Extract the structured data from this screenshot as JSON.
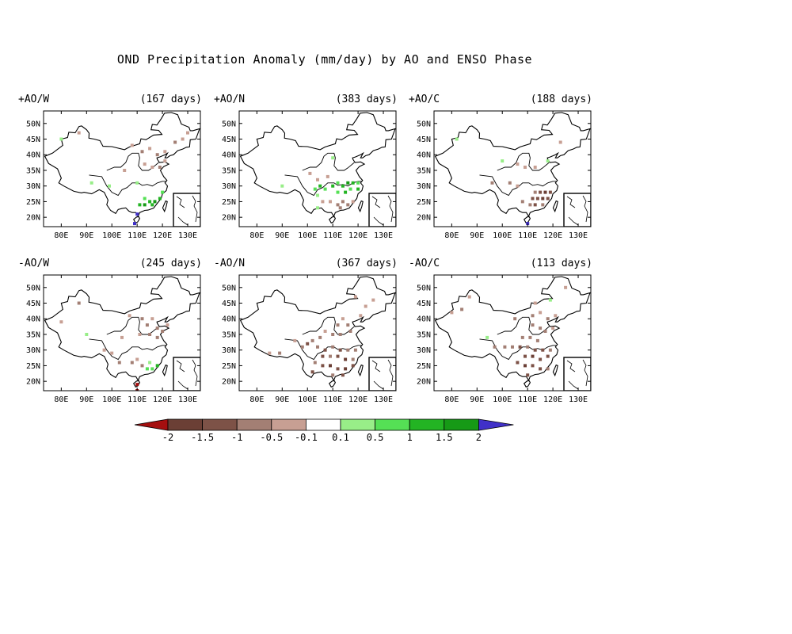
{
  "title": "OND Precipitation Anomaly (mm/day) by AO and ENSO Phase",
  "axes": {
    "x_ticks": [
      "80E",
      "90E",
      "100E",
      "110E",
      "120E",
      "130E"
    ],
    "y_ticks": [
      "50N",
      "45N",
      "40N",
      "35N",
      "30N",
      "25N",
      "20N"
    ]
  },
  "colorbar": {
    "labels": [
      "-2",
      "-1.5",
      "-1",
      "-0.5",
      "-0.1",
      "0.1",
      "0.5",
      "1",
      "1.5",
      "2"
    ],
    "colors": [
      "#a50f0f",
      "#6b3f35",
      "#7d5247",
      "#a37f74",
      "#c79f93",
      "#ffffff",
      "#98ee88",
      "#55e055",
      "#23b423",
      "#169a16",
      "#4030c8"
    ]
  },
  "chart_data": [
    {
      "type": "scatter",
      "panel": "top-left",
      "label": "+AO/W",
      "days": "(167 days)",
      "xlim": [
        73,
        135
      ],
      "ylim": [
        17,
        54
      ],
      "points": [
        [
          80,
          45,
          "#98ee88"
        ],
        [
          87,
          47,
          "#c79f93"
        ],
        [
          108,
          43,
          "#c79f93"
        ],
        [
          112,
          41,
          "#a37f74"
        ],
        [
          115,
          42,
          "#c79f93"
        ],
        [
          118,
          40,
          "#a37f74"
        ],
        [
          121,
          41,
          "#c79f93"
        ],
        [
          125,
          44,
          "#a37f74"
        ],
        [
          128,
          45,
          "#c79f93"
        ],
        [
          130,
          47,
          "#c79f93"
        ],
        [
          113,
          37,
          "#c79f93"
        ],
        [
          116,
          36,
          "#c79f93"
        ],
        [
          119,
          36,
          "#a37f74"
        ],
        [
          121,
          38,
          "#c79f93"
        ],
        [
          105,
          35,
          "#c79f93"
        ],
        [
          110,
          31,
          "#98ee88"
        ],
        [
          92,
          31,
          "#98ee88"
        ],
        [
          99,
          30,
          "#98ee88"
        ],
        [
          113,
          26,
          "#55e055"
        ],
        [
          115,
          25,
          "#23b423"
        ],
        [
          117,
          25,
          "#169a16"
        ],
        [
          119,
          26,
          "#23b423"
        ],
        [
          120,
          28,
          "#55e055"
        ],
        [
          111,
          24,
          "#23b423"
        ],
        [
          113,
          24,
          "#169a16"
        ],
        [
          116,
          24,
          "#23b423"
        ],
        [
          110,
          21,
          "#4030c8"
        ],
        [
          109,
          18,
          "#4030c8"
        ]
      ]
    },
    {
      "type": "scatter",
      "panel": "top-middle",
      "label": "+AO/N",
      "days": "(383 days)",
      "xlim": [
        73,
        135
      ],
      "ylim": [
        17,
        54
      ],
      "points": [
        [
          101,
          34,
          "#c79f93"
        ],
        [
          104,
          32,
          "#c79f93"
        ],
        [
          108,
          33,
          "#c79f93"
        ],
        [
          110,
          39,
          "#98ee88"
        ],
        [
          90,
          30,
          "#98ee88"
        ],
        [
          103,
          29,
          "#55e055"
        ],
        [
          105,
          30,
          "#23b423"
        ],
        [
          107,
          29,
          "#55e055"
        ],
        [
          110,
          30,
          "#23b423"
        ],
        [
          112,
          31,
          "#55e055"
        ],
        [
          114,
          30,
          "#23b423"
        ],
        [
          116,
          31,
          "#169a16"
        ],
        [
          118,
          31,
          "#23b423"
        ],
        [
          120,
          31,
          "#55e055"
        ],
        [
          112,
          28,
          "#55e055"
        ],
        [
          115,
          28,
          "#23b423"
        ],
        [
          117,
          29,
          "#55e055"
        ],
        [
          120,
          29,
          "#23b423"
        ],
        [
          104,
          27,
          "#98ee88"
        ],
        [
          106,
          25,
          "#c79f93"
        ],
        [
          109,
          25,
          "#c79f93"
        ],
        [
          112,
          24,
          "#a37f74"
        ],
        [
          114,
          25,
          "#a37f74"
        ],
        [
          116,
          24,
          "#a37f74"
        ],
        [
          118,
          25,
          "#c79f93"
        ],
        [
          113,
          23,
          "#a37f74"
        ],
        [
          104,
          23,
          "#98ee88"
        ]
      ]
    },
    {
      "type": "scatter",
      "panel": "top-right",
      "label": "+AO/C",
      "days": "(188 days)",
      "xlim": [
        73,
        135
      ],
      "ylim": [
        17,
        54
      ],
      "points": [
        [
          82,
          45,
          "#98ee88"
        ],
        [
          100,
          38,
          "#98ee88"
        ],
        [
          106,
          37,
          "#c79f93"
        ],
        [
          109,
          36,
          "#c79f93"
        ],
        [
          113,
          36,
          "#c79f93"
        ],
        [
          118,
          38,
          "#98ee88"
        ],
        [
          123,
          44,
          "#c79f93"
        ],
        [
          96,
          31,
          "#a37f74"
        ],
        [
          103,
          31,
          "#a37f74"
        ],
        [
          106,
          30,
          "#c79f93"
        ],
        [
          113,
          28,
          "#a37f74"
        ],
        [
          115,
          28,
          "#7d5247"
        ],
        [
          117,
          28,
          "#6b3f35"
        ],
        [
          119,
          28,
          "#7d5247"
        ],
        [
          112,
          26,
          "#7d5247"
        ],
        [
          114,
          26,
          "#7d5247"
        ],
        [
          116,
          26,
          "#6b3f35"
        ],
        [
          118,
          26,
          "#7d5247"
        ],
        [
          108,
          25,
          "#a37f74"
        ],
        [
          111,
          24,
          "#a37f74"
        ],
        [
          113,
          24,
          "#7d5247"
        ],
        [
          116,
          24,
          "#a37f74"
        ],
        [
          110,
          18,
          "#4030c8"
        ]
      ]
    },
    {
      "type": "scatter",
      "panel": "bottom-left",
      "label": "-AO/W",
      "days": "(245 days)",
      "xlim": [
        73,
        135
      ],
      "ylim": [
        17,
        54
      ],
      "points": [
        [
          80,
          39,
          "#c79f93"
        ],
        [
          87,
          45,
          "#a37f74"
        ],
        [
          107,
          41,
          "#c79f93"
        ],
        [
          112,
          40,
          "#a37f74"
        ],
        [
          114,
          38,
          "#a37f74"
        ],
        [
          116,
          40,
          "#c79f93"
        ],
        [
          118,
          37,
          "#a37f74"
        ],
        [
          120,
          36,
          "#a37f74"
        ],
        [
          122,
          38,
          "#c79f93"
        ],
        [
          111,
          35,
          "#c79f93"
        ],
        [
          115,
          35,
          "#a37f74"
        ],
        [
          118,
          34,
          "#a37f74"
        ],
        [
          104,
          34,
          "#c79f93"
        ],
        [
          97,
          30,
          "#c79f93"
        ],
        [
          100,
          29,
          "#c79f93"
        ],
        [
          103,
          26,
          "#a37f74"
        ],
        [
          108,
          26,
          "#a37f74"
        ],
        [
          110,
          27,
          "#c79f93"
        ],
        [
          112,
          25,
          "#a37f74"
        ],
        [
          114,
          24,
          "#55e055"
        ],
        [
          116,
          24,
          "#55e055"
        ],
        [
          118,
          25,
          "#23b423"
        ],
        [
          115,
          26,
          "#98ee88"
        ],
        [
          90,
          35,
          "#98ee88"
        ],
        [
          110,
          19,
          "#a50f0f"
        ],
        [
          110,
          17,
          "#a50f0f"
        ]
      ]
    },
    {
      "type": "scatter",
      "panel": "bottom-middle",
      "label": "-AO/N",
      "days": "(367 days)",
      "xlim": [
        73,
        135
      ],
      "ylim": [
        17,
        54
      ],
      "points": [
        [
          119,
          47,
          "#c79f93"
        ],
        [
          123,
          44,
          "#c79f93"
        ],
        [
          126,
          46,
          "#c79f93"
        ],
        [
          121,
          41,
          "#c79f93"
        ],
        [
          114,
          40,
          "#c79f93"
        ],
        [
          112,
          38,
          "#a37f74"
        ],
        [
          116,
          38,
          "#a37f74"
        ],
        [
          117,
          36,
          "#a37f74"
        ],
        [
          110,
          35,
          "#a37f74"
        ],
        [
          113,
          35,
          "#a37f74"
        ],
        [
          105,
          34,
          "#a37f74"
        ],
        [
          107,
          36,
          "#c79f93"
        ],
        [
          102,
          33,
          "#a37f74"
        ],
        [
          95,
          33,
          "#c79f93"
        ],
        [
          98,
          31,
          "#a37f74"
        ],
        [
          100,
          32,
          "#7d5247"
        ],
        [
          104,
          31,
          "#a37f74"
        ],
        [
          107,
          30,
          "#7d5247"
        ],
        [
          110,
          31,
          "#a37f74"
        ],
        [
          113,
          30,
          "#7d5247"
        ],
        [
          116,
          30,
          "#a37f74"
        ],
        [
          119,
          30,
          "#a37f74"
        ],
        [
          106,
          28,
          "#7d5247"
        ],
        [
          109,
          28,
          "#a37f74"
        ],
        [
          112,
          28,
          "#7d5247"
        ],
        [
          115,
          27,
          "#6b3f35"
        ],
        [
          118,
          27,
          "#a37f74"
        ],
        [
          103,
          26,
          "#a37f74"
        ],
        [
          106,
          25,
          "#7d5247"
        ],
        [
          109,
          25,
          "#6b3f35"
        ],
        [
          112,
          24,
          "#7d5247"
        ],
        [
          115,
          24,
          "#6b3f35"
        ],
        [
          118,
          25,
          "#7d5247"
        ],
        [
          102,
          23,
          "#7d5247"
        ],
        [
          110,
          22,
          "#a37f74"
        ],
        [
          114,
          22,
          "#7d5247"
        ],
        [
          89,
          29,
          "#a37f74"
        ],
        [
          85,
          29,
          "#c79f93"
        ]
      ]
    },
    {
      "type": "scatter",
      "panel": "bottom-right",
      "label": "-AO/C",
      "days": "(113 days)",
      "xlim": [
        73,
        135
      ],
      "ylim": [
        17,
        54
      ],
      "points": [
        [
          80,
          42,
          "#c79f93"
        ],
        [
          84,
          43,
          "#a37f74"
        ],
        [
          87,
          47,
          "#c79f93"
        ],
        [
          105,
          40,
          "#a37f74"
        ],
        [
          112,
          41,
          "#a37f74"
        ],
        [
          115,
          42,
          "#c79f93"
        ],
        [
          118,
          40,
          "#a37f74"
        ],
        [
          121,
          41,
          "#c79f93"
        ],
        [
          113,
          45,
          "#c79f93"
        ],
        [
          119,
          46,
          "#98ee88"
        ],
        [
          125,
          50,
          "#c79f93"
        ],
        [
          112,
          38,
          "#a37f74"
        ],
        [
          115,
          37,
          "#a37f74"
        ],
        [
          117,
          36,
          "#a37f74"
        ],
        [
          120,
          37,
          "#c79f93"
        ],
        [
          108,
          34,
          "#a37f74"
        ],
        [
          111,
          34,
          "#a37f74"
        ],
        [
          114,
          33,
          "#a37f74"
        ],
        [
          94,
          34,
          "#98ee88"
        ],
        [
          97,
          31,
          "#a37f74"
        ],
        [
          101,
          31,
          "#a37f74"
        ],
        [
          104,
          31,
          "#a37f74"
        ],
        [
          107,
          31,
          "#7d5247"
        ],
        [
          110,
          31,
          "#a37f74"
        ],
        [
          113,
          30,
          "#7d5247"
        ],
        [
          116,
          30,
          "#7d5247"
        ],
        [
          119,
          30,
          "#a37f74"
        ],
        [
          109,
          28,
          "#7d5247"
        ],
        [
          112,
          28,
          "#6b3f35"
        ],
        [
          115,
          27,
          "#7d5247"
        ],
        [
          118,
          28,
          "#7d5247"
        ],
        [
          106,
          26,
          "#7d5247"
        ],
        [
          109,
          25,
          "#6b3f35"
        ],
        [
          112,
          25,
          "#7d5247"
        ],
        [
          115,
          24,
          "#7d5247"
        ],
        [
          118,
          24,
          "#a37f74"
        ],
        [
          110,
          22,
          "#7d5247"
        ]
      ]
    }
  ]
}
